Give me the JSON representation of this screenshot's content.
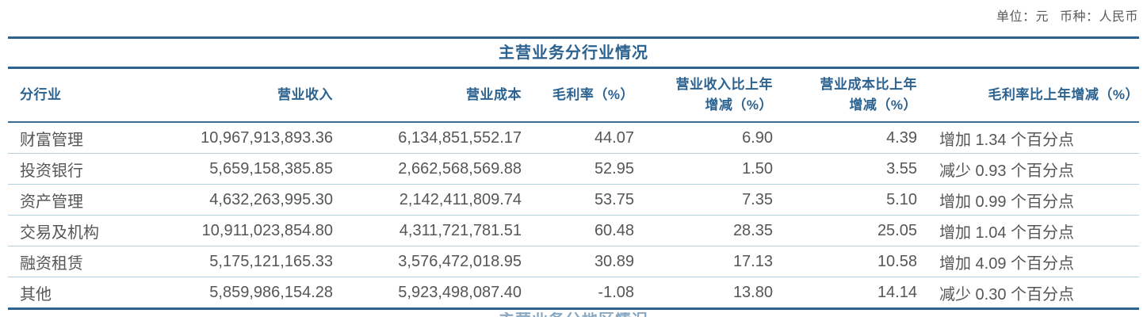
{
  "meta": {
    "unit_label": "单位：元",
    "currency_label": "币种：人民币"
  },
  "table": {
    "title": "主营业务分行业情况",
    "columns": [
      {
        "label": "分行业"
      },
      {
        "label": "营业收入"
      },
      {
        "label": "营业成本"
      },
      {
        "label": "毛利率（%）"
      },
      {
        "label": "营业收入比上年\n增减（%）"
      },
      {
        "label": "营业成本比上年\n增减（%）"
      },
      {
        "label": "毛利率比上年增减（%）"
      }
    ],
    "rows": [
      [
        "财富管理",
        "10,967,913,893.36",
        "6,134,851,552.17",
        "44.07",
        "6.90",
        "4.39",
        "增加 1.34 个百分点"
      ],
      [
        "投资银行",
        "5,659,158,385.85",
        "2,662,568,569.88",
        "52.95",
        "1.50",
        "3.55",
        "减少 0.93 个百分点"
      ],
      [
        "资产管理",
        "4,632,263,995.30",
        "2,142,411,809.74",
        "53.75",
        "7.35",
        "5.10",
        "增加 0.99 个百分点"
      ],
      [
        "交易及机构",
        "10,911,023,854.80",
        "4,311,721,781.51",
        "60.48",
        "28.35",
        "25.05",
        "增加 1.04 个百分点"
      ],
      [
        "融资租赁",
        "5,175,121,165.33",
        "3,576,472,018.95",
        "30.89",
        "17.13",
        "10.58",
        "增加 4.09 个百分点"
      ],
      [
        "其他",
        "5,859,986,154.28",
        "5,923,498,087.40",
        "-1.08",
        "13.80",
        "14.14",
        "减少 0.30 个百分点"
      ]
    ]
  },
  "next_section": {
    "partial_title": "主营业务分地区情况"
  },
  "colors": {
    "accent_blue": "#2c628f",
    "row_separator": "#b3cede",
    "body_text": "#565656"
  }
}
